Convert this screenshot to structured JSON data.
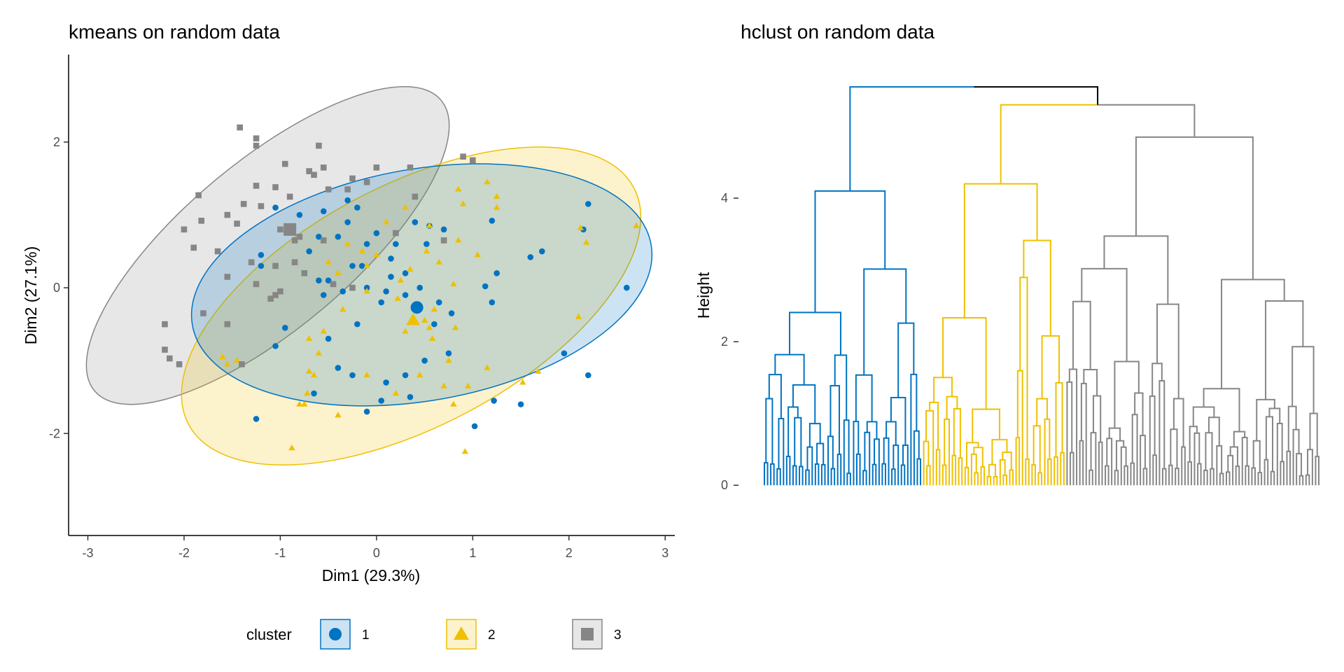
{
  "chart_data": [
    {
      "type": "scatter",
      "title": "kmeans on random data",
      "xlabel": "Dim1 (29.3%)",
      "ylabel": "Dim2 (27.1%)",
      "xlim": [
        -3.2,
        3.1
      ],
      "ylim": [
        -3.4,
        3.2
      ],
      "xticks": [
        -3,
        -2,
        -1,
        0,
        1,
        2,
        3
      ],
      "yticks": [
        -2,
        0,
        2
      ],
      "grid": false,
      "legend": {
        "title": "cluster",
        "position": "bottom"
      },
      "series": [
        {
          "name": "1",
          "shape": "circle",
          "color": "#0073C2",
          "centroid": [
            0.42,
            -0.27
          ],
          "ellipse": {
            "cx": 0.47,
            "cy": 0.04,
            "rx": 2.42,
            "ry": 1.59,
            "angle_deg": 10
          },
          "points": [
            [
              2.2,
              1.15
            ],
            [
              1.2,
              0.92
            ],
            [
              2.6,
              0.0
            ],
            [
              2.15,
              0.8
            ],
            [
              1.72,
              0.5
            ],
            [
              1.6,
              0.42
            ],
            [
              1.25,
              0.2
            ],
            [
              1.2,
              -0.2
            ],
            [
              1.13,
              0.02
            ],
            [
              0.55,
              0.85
            ],
            [
              0.7,
              0.8
            ],
            [
              0.52,
              0.6
            ],
            [
              0.3,
              0.2
            ],
            [
              0.15,
              0.15
            ],
            [
              0.1,
              -0.05
            ],
            [
              0.05,
              -0.2
            ],
            [
              0.3,
              -0.1
            ],
            [
              0.45,
              0.0
            ],
            [
              0.65,
              -0.2
            ],
            [
              0.6,
              -0.5
            ],
            [
              0.78,
              -0.35
            ],
            [
              0.75,
              -0.9
            ],
            [
              0.5,
              -1.0
            ],
            [
              0.3,
              -1.2
            ],
            [
              0.1,
              -1.3
            ],
            [
              0.05,
              -1.55
            ],
            [
              -0.1,
              -1.7
            ],
            [
              0.35,
              -1.5
            ],
            [
              1.22,
              -1.55
            ],
            [
              1.5,
              -1.6
            ],
            [
              1.02,
              -1.9
            ],
            [
              1.95,
              -0.9
            ],
            [
              2.2,
              -1.2
            ],
            [
              -1.25,
              -1.8
            ],
            [
              -1.05,
              -0.8
            ],
            [
              -0.95,
              -0.55
            ],
            [
              -0.5,
              -0.7
            ],
            [
              -0.65,
              -1.45
            ],
            [
              -0.2,
              -0.5
            ],
            [
              -0.25,
              -1.2
            ],
            [
              -0.4,
              -1.1
            ],
            [
              -0.1,
              0.6
            ],
            [
              -0.25,
              0.3
            ],
            [
              -0.35,
              -0.05
            ],
            [
              -0.5,
              0.1
            ],
            [
              -0.55,
              -0.1
            ],
            [
              -0.6,
              0.1
            ],
            [
              -0.7,
              0.5
            ],
            [
              -0.6,
              0.7
            ],
            [
              -0.55,
              1.05
            ],
            [
              -0.8,
              1.0
            ],
            [
              -1.05,
              1.1
            ],
            [
              -1.2,
              0.3
            ],
            [
              -1.2,
              0.45
            ],
            [
              -0.3,
              1.2
            ],
            [
              -0.2,
              1.1
            ],
            [
              -0.3,
              0.9
            ],
            [
              -0.4,
              0.7
            ],
            [
              -0.15,
              0.3
            ],
            [
              -0.1,
              0.0
            ],
            [
              0.0,
              0.75
            ],
            [
              0.2,
              0.6
            ],
            [
              0.4,
              0.9
            ],
            [
              0.15,
              0.4
            ]
          ]
        },
        {
          "name": "2",
          "shape": "triangle",
          "color": "#EFC000",
          "centroid": [
            0.38,
            -0.45
          ],
          "ellipse": {
            "cx": 0.36,
            "cy": -0.25,
            "rx": 2.62,
            "ry": 1.65,
            "angle_deg": 28
          },
          "points": [
            [
              2.7,
              0.85
            ],
            [
              2.12,
              0.82
            ],
            [
              2.18,
              0.62
            ],
            [
              2.1,
              -0.4
            ],
            [
              1.68,
              -1.15
            ],
            [
              1.52,
              -1.3
            ],
            [
              0.92,
              -2.25
            ],
            [
              -0.88,
              -2.2
            ],
            [
              1.25,
              1.1
            ],
            [
              1.25,
              1.25
            ],
            [
              1.15,
              1.45
            ],
            [
              0.85,
              1.35
            ],
            [
              0.55,
              0.85
            ],
            [
              0.85,
              0.65
            ],
            [
              1.05,
              0.45
            ],
            [
              0.65,
              0.35
            ],
            [
              0.35,
              0.25
            ],
            [
              0.52,
              0.5
            ],
            [
              0.22,
              -0.15
            ],
            [
              0.5,
              -0.45
            ],
            [
              0.6,
              -0.3
            ],
            [
              0.82,
              -0.55
            ],
            [
              0.58,
              -0.7
            ],
            [
              0.75,
              -1.0
            ],
            [
              0.45,
              -1.2
            ],
            [
              0.7,
              -1.35
            ],
            [
              0.95,
              -1.35
            ],
            [
              1.15,
              -1.1
            ],
            [
              0.8,
              -1.6
            ],
            [
              0.2,
              -1.45
            ],
            [
              -0.1,
              -0.05
            ],
            [
              -0.35,
              -0.3
            ],
            [
              -0.55,
              -0.6
            ],
            [
              -0.7,
              -0.7
            ],
            [
              -0.6,
              -0.9
            ],
            [
              -0.7,
              -1.15
            ],
            [
              -0.65,
              -1.2
            ],
            [
              -0.72,
              -1.45
            ],
            [
              -0.75,
              -1.6
            ],
            [
              -0.8,
              -1.6
            ],
            [
              -0.4,
              -1.75
            ],
            [
              -0.1,
              -1.2
            ],
            [
              -1.6,
              -0.95
            ],
            [
              -1.55,
              -1.05
            ],
            [
              -1.45,
              -1.0
            ],
            [
              -0.5,
              0.35
            ],
            [
              -0.4,
              0.2
            ],
            [
              -0.3,
              0.6
            ],
            [
              -0.15,
              0.5
            ],
            [
              -0.1,
              0.3
            ],
            [
              0.0,
              0.45
            ],
            [
              0.1,
              0.9
            ],
            [
              0.3,
              1.1
            ],
            [
              0.9,
              1.15
            ],
            [
              0.55,
              -0.55
            ],
            [
              0.3,
              -0.6
            ],
            [
              0.25,
              0.1
            ],
            [
              0.8,
              0.05
            ]
          ]
        },
        {
          "name": "3",
          "shape": "square",
          "color": "#868686",
          "centroid": [
            -0.9,
            0.8
          ],
          "ellipse": {
            "cx": -1.13,
            "cy": 0.58,
            "rx": 2.35,
            "ry": 1.15,
            "angle_deg": 40
          },
          "points": [
            [
              -1.42,
              2.2
            ],
            [
              -1.25,
              2.05
            ],
            [
              -1.25,
              1.95
            ],
            [
              -1.25,
              1.4
            ],
            [
              -1.05,
              1.38
            ],
            [
              -1.38,
              1.15
            ],
            [
              -1.55,
              1.0
            ],
            [
              -1.45,
              0.88
            ],
            [
              -1.2,
              1.12
            ],
            [
              -0.9,
              1.25
            ],
            [
              -0.85,
              0.65
            ],
            [
              -0.7,
              1.6
            ],
            [
              -0.95,
              1.7
            ],
            [
              -0.65,
              1.55
            ],
            [
              -0.5,
              1.35
            ],
            [
              -0.55,
              1.65
            ],
            [
              -0.6,
              1.95
            ],
            [
              -0.3,
              1.35
            ],
            [
              -0.25,
              1.5
            ],
            [
              -1.85,
              1.27
            ],
            [
              -1.82,
              0.92
            ],
            [
              -1.9,
              0.55
            ],
            [
              -1.65,
              0.5
            ],
            [
              -1.3,
              0.35
            ],
            [
              -1.05,
              0.3
            ],
            [
              -1.25,
              0.05
            ],
            [
              -1.1,
              -0.15
            ],
            [
              -1.05,
              -0.1
            ],
            [
              -1.0,
              0.8
            ],
            [
              -0.85,
              0.35
            ],
            [
              -0.8,
              0.7
            ],
            [
              -0.75,
              0.2
            ],
            [
              -0.55,
              0.65
            ],
            [
              -0.45,
              0.05
            ],
            [
              -0.25,
              0.0
            ],
            [
              -1.55,
              -0.5
            ],
            [
              -1.8,
              -0.35
            ],
            [
              -2.2,
              -0.5
            ],
            [
              -2.2,
              -0.85
            ],
            [
              -2.15,
              -0.97
            ],
            [
              -2.05,
              -1.05
            ],
            [
              -1.4,
              -1.05
            ],
            [
              -1.55,
              0.15
            ],
            [
              -1.0,
              -0.05
            ],
            [
              0.0,
              1.65
            ],
            [
              0.35,
              1.65
            ],
            [
              0.4,
              1.25
            ],
            [
              0.2,
              0.75
            ],
            [
              1.0,
              1.75
            ],
            [
              0.9,
              1.8
            ],
            [
              -0.1,
              1.45
            ],
            [
              0.7,
              0.65
            ],
            [
              -2.0,
              0.8
            ]
          ]
        }
      ]
    },
    {
      "type": "dendrogram",
      "title": "hclust on random data",
      "ylabel": "Height",
      "yticks": [
        0,
        2,
        4
      ],
      "ylim": [
        -0.7,
        6.0
      ],
      "n_leaves": 175,
      "root_height": 5.45,
      "clusters": [
        {
          "name": "1",
          "color": "#0073C2",
          "leaves": 50,
          "merge_height": 5.55,
          "sub_merge_heights": [
            4.1,
            3.25,
            2.75,
            2.65,
            1.85,
            1.95
          ]
        },
        {
          "name": "2",
          "color": "#EFC000",
          "leaves": 45,
          "merge_height": 5.3,
          "sub_merge_heights": [
            4.2,
            3.45,
            3.1,
            3.15,
            2.6,
            2.5
          ]
        },
        {
          "name": "3",
          "color": "#868686",
          "leaves": 80,
          "merge_height": 5.3,
          "sub_merge_heights": [
            4.85,
            4.8,
            3.4,
            2.9,
            2.8,
            2.75
          ]
        }
      ]
    }
  ],
  "colors": {
    "cluster1": "#0073C2",
    "cluster2": "#EFC000",
    "cluster3": "#868686",
    "axis": "#000000",
    "tick_text": "#4d4d4d"
  }
}
